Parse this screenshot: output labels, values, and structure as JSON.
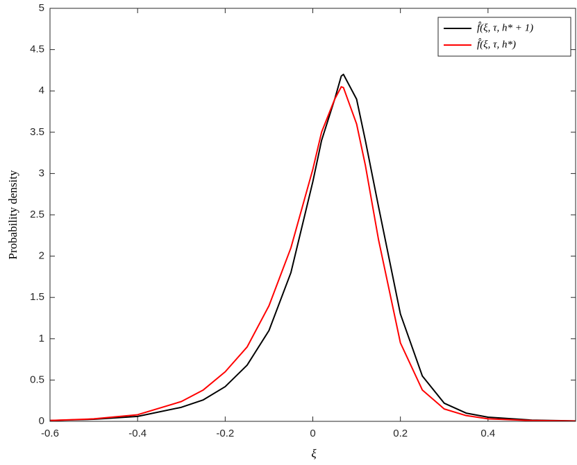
{
  "chart_data": {
    "type": "line",
    "x_label": "ξ",
    "y_label": "Probability density",
    "x": [
      -0.6,
      -0.5,
      -0.4,
      -0.3,
      -0.25,
      -0.2,
      -0.15,
      -0.1,
      -0.05,
      0,
      0.02,
      0.05,
      0.065,
      0.07,
      0.1,
      0.12,
      0.15,
      0.2,
      0.25,
      0.3,
      0.35,
      0.4,
      0.5,
      0.6
    ],
    "series": [
      {
        "name": "f̂(ξ, τ, h* + 1)",
        "color": "#000000",
        "values": [
          0.01,
          0.025,
          0.06,
          0.17,
          0.26,
          0.42,
          0.68,
          1.1,
          1.8,
          2.9,
          3.4,
          3.9,
          4.18,
          4.2,
          3.9,
          3.4,
          2.6,
          1.3,
          0.55,
          0.22,
          0.1,
          0.05,
          0.015,
          0.005
        ]
      },
      {
        "name": "f̂(ξ, τ, h*)",
        "color": "#ff0000",
        "values": [
          0.01,
          0.03,
          0.08,
          0.24,
          0.38,
          0.6,
          0.9,
          1.4,
          2.1,
          3.05,
          3.5,
          3.9,
          4.05,
          4.04,
          3.6,
          3.1,
          2.2,
          0.95,
          0.38,
          0.15,
          0.07,
          0.03,
          0.01,
          0.004
        ]
      }
    ],
    "xlim": [
      -0.6,
      0.6
    ],
    "ylim": [
      0,
      5
    ],
    "xticks": [
      -0.6,
      -0.4,
      -0.2,
      0,
      0.2,
      0.4
    ],
    "yticks": [
      0,
      0.5,
      1,
      1.5,
      2,
      2.5,
      3,
      3.5,
      4,
      4.5,
      5
    ],
    "grid": false,
    "legend": "top-right"
  }
}
